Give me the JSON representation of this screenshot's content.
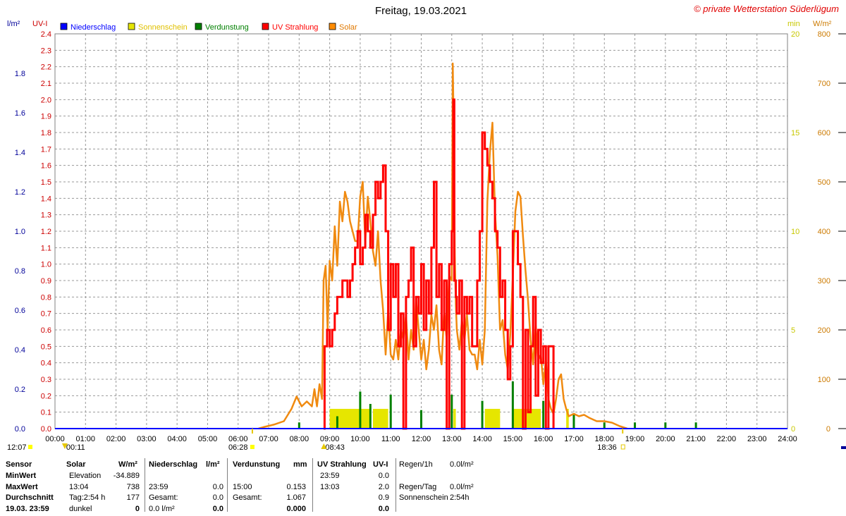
{
  "title": "Freitag, 19.03.2021",
  "copyright": "© private Wetterstation Süderlügum",
  "axes": {
    "left_outer_unit": "l/m²",
    "left_inner_unit": "UV-I",
    "right_inner_unit": "min",
    "right_outer_unit": "W/m²",
    "left_outer_ticks": [
      "0.0",
      "0.2",
      "0.4",
      "0.6",
      "0.8",
      "1.0",
      "1.2",
      "1.4",
      "1.6",
      "1.8"
    ],
    "left_inner_ticks": [
      "0.0",
      "0.1",
      "0.2",
      "0.3",
      "0.4",
      "0.5",
      "0.6",
      "0.7",
      "0.8",
      "0.9",
      "1.0",
      "1.1",
      "1.2",
      "1.3",
      "1.4",
      "1.5",
      "1.6",
      "1.7",
      "1.8",
      "1.9",
      "2.0",
      "2.1",
      "2.2",
      "2.3",
      "2.4"
    ],
    "right_inner_ticks": [
      "0",
      "5",
      "10",
      "15",
      "20"
    ],
    "right_outer_ticks": [
      "0",
      "100",
      "200",
      "300",
      "400",
      "500",
      "600",
      "700",
      "800"
    ],
    "x_ticks": [
      "00:00",
      "01:00",
      "02:00",
      "03:00",
      "04:00",
      "05:00",
      "06:00",
      "07:00",
      "08:00",
      "09:00",
      "10:00",
      "11:00",
      "12:00",
      "13:00",
      "14:00",
      "15:00",
      "16:00",
      "17:00",
      "18:00",
      "19:00",
      "20:00",
      "21:00",
      "22:00",
      "23:00",
      "24:00"
    ]
  },
  "markers": {
    "moonrise_left": "12:07",
    "moonset": "00:11",
    "sunrise": "06:28",
    "sunshine_start": "08:43",
    "sunset": "18:36"
  },
  "legend": [
    {
      "label": "Niederschlag",
      "color": "#0000ff"
    },
    {
      "label": "Sonnenschein",
      "color": "#e6e600"
    },
    {
      "label": "Verdunstung",
      "color": "#008000"
    },
    {
      "label": "UV Strahlung",
      "color": "#ff0000"
    },
    {
      "label": "Solar",
      "color": "#ff8c00"
    }
  ],
  "colors": {
    "solar": "#f08a10",
    "uv": "#ff0000",
    "sunshine": "#e6e600",
    "evaporation": "#008000",
    "rain": "#0000ff",
    "uv_axis": "#cc0000",
    "rain_axis": "#000099",
    "sun_axis": "#c8c800"
  },
  "chart_data": {
    "type": "line",
    "x_unit": "time of day",
    "xlim": [
      "00:00",
      "24:00"
    ],
    "series": [
      {
        "name": "Solar",
        "axis": "W/m²",
        "ylim": [
          0,
          800
        ],
        "points": [
          [
            "06:40",
            0
          ],
          [
            "06:50",
            3
          ],
          [
            "07:10",
            8
          ],
          [
            "07:30",
            15
          ],
          [
            "07:45",
            40
          ],
          [
            "07:55",
            65
          ],
          [
            "08:05",
            45
          ],
          [
            "08:15",
            55
          ],
          [
            "08:25",
            45
          ],
          [
            "08:30",
            80
          ],
          [
            "08:35",
            45
          ],
          [
            "08:40",
            90
          ],
          [
            "08:45",
            60
          ],
          [
            "08:48",
            300
          ],
          [
            "08:52",
            330
          ],
          [
            "08:56",
            200
          ],
          [
            "09:00",
            340
          ],
          [
            "09:05",
            300
          ],
          [
            "09:10",
            410
          ],
          [
            "09:15",
            330
          ],
          [
            "09:20",
            460
          ],
          [
            "09:25",
            420
          ],
          [
            "09:30",
            480
          ],
          [
            "09:35",
            460
          ],
          [
            "09:40",
            420
          ],
          [
            "09:45",
            400
          ],
          [
            "09:50",
            380
          ],
          [
            "09:55",
            380
          ],
          [
            "10:00",
            470
          ],
          [
            "10:05",
            500
          ],
          [
            "10:10",
            380
          ],
          [
            "10:15",
            470
          ],
          [
            "10:20",
            420
          ],
          [
            "10:25",
            360
          ],
          [
            "10:30",
            330
          ],
          [
            "10:35",
            400
          ],
          [
            "10:40",
            300
          ],
          [
            "10:45",
            240
          ],
          [
            "10:50",
            150
          ],
          [
            "10:55",
            240
          ],
          [
            "11:00",
            150
          ],
          [
            "11:05",
            140
          ],
          [
            "11:10",
            180
          ],
          [
            "11:15",
            140
          ],
          [
            "11:20",
            200
          ],
          [
            "11:25",
            180
          ],
          [
            "11:30",
            230
          ],
          [
            "11:35",
            140
          ],
          [
            "11:40",
            200
          ],
          [
            "11:45",
            160
          ],
          [
            "11:50",
            260
          ],
          [
            "11:55",
            200
          ],
          [
            "12:00",
            140
          ],
          [
            "12:05",
            180
          ],
          [
            "12:10",
            120
          ],
          [
            "12:15",
            160
          ],
          [
            "12:20",
            230
          ],
          [
            "12:25",
            200
          ],
          [
            "12:30",
            250
          ],
          [
            "12:35",
            160
          ],
          [
            "12:40",
            130
          ],
          [
            "12:45",
            240
          ],
          [
            "12:50",
            180
          ],
          [
            "12:55",
            310
          ],
          [
            "13:00",
            300
          ],
          [
            "13:02",
            740
          ],
          [
            "13:04",
            600
          ],
          [
            "13:06",
            350
          ],
          [
            "13:08",
            250
          ],
          [
            "13:10",
            200
          ],
          [
            "13:15",
            160
          ],
          [
            "13:20",
            220
          ],
          [
            "13:25",
            180
          ],
          [
            "13:30",
            230
          ],
          [
            "13:35",
            160
          ],
          [
            "13:40",
            150
          ],
          [
            "13:45",
            150
          ],
          [
            "13:50",
            120
          ],
          [
            "13:55",
            180
          ],
          [
            "14:00",
            130
          ],
          [
            "14:05",
            200
          ],
          [
            "14:10",
            460
          ],
          [
            "14:15",
            560
          ],
          [
            "14:20",
            620
          ],
          [
            "14:25",
            440
          ],
          [
            "14:30",
            350
          ],
          [
            "14:35",
            200
          ],
          [
            "14:40",
            220
          ],
          [
            "14:45",
            150
          ],
          [
            "14:50",
            120
          ],
          [
            "14:55",
            190
          ],
          [
            "15:00",
            310
          ],
          [
            "15:05",
            440
          ],
          [
            "15:10",
            480
          ],
          [
            "15:15",
            470
          ],
          [
            "15:20",
            390
          ],
          [
            "15:25",
            320
          ],
          [
            "15:30",
            260
          ],
          [
            "15:35",
            180
          ],
          [
            "15:40",
            130
          ],
          [
            "15:45",
            210
          ],
          [
            "15:50",
            140
          ],
          [
            "15:55",
            150
          ],
          [
            "16:00",
            90
          ],
          [
            "16:05",
            140
          ],
          [
            "16:10",
            60
          ],
          [
            "16:15",
            40
          ],
          [
            "16:20",
            30
          ],
          [
            "16:25",
            60
          ],
          [
            "16:30",
            100
          ],
          [
            "16:35",
            110
          ],
          [
            "16:40",
            60
          ],
          [
            "16:45",
            40
          ],
          [
            "16:50",
            25
          ],
          [
            "17:00",
            30
          ],
          [
            "17:10",
            25
          ],
          [
            "17:20",
            28
          ],
          [
            "17:30",
            22
          ],
          [
            "17:45",
            15
          ],
          [
            "18:00",
            15
          ],
          [
            "18:15",
            12
          ],
          [
            "18:30",
            5
          ],
          [
            "18:45",
            0
          ]
        ]
      },
      {
        "name": "UV Strahlung",
        "axis": "UV-I",
        "ylim": [
          0,
          2.4
        ],
        "points": [
          [
            "08:48",
            0
          ],
          [
            "08:50",
            0.5
          ],
          [
            "08:55",
            0.6
          ],
          [
            "09:00",
            0.5
          ],
          [
            "09:05",
            0.6
          ],
          [
            "09:10",
            0.7
          ],
          [
            "09:15",
            0.8
          ],
          [
            "09:20",
            0.8
          ],
          [
            "09:25",
            0.9
          ],
          [
            "09:30",
            0.9
          ],
          [
            "09:35",
            0.8
          ],
          [
            "09:40",
            0.9
          ],
          [
            "09:45",
            1.0
          ],
          [
            "09:50",
            1.1
          ],
          [
            "09:55",
            1.2
          ],
          [
            "10:00",
            1.0
          ],
          [
            "10:05",
            1.1
          ],
          [
            "10:10",
            1.3
          ],
          [
            "10:15",
            1.2
          ],
          [
            "10:20",
            1.1
          ],
          [
            "10:25",
            1.3
          ],
          [
            "10:30",
            1.5
          ],
          [
            "10:35",
            1.4
          ],
          [
            "10:40",
            1.5
          ],
          [
            "10:45",
            1.6
          ],
          [
            "10:50",
            1.2
          ],
          [
            "10:55",
            0.6
          ],
          [
            "11:00",
            1.0
          ],
          [
            "11:05",
            0.8
          ],
          [
            "11:10",
            1.0
          ],
          [
            "11:15",
            0.5
          ],
          [
            "11:20",
            0.7
          ],
          [
            "11:25",
            0.0
          ],
          [
            "11:30",
            0.8
          ],
          [
            "11:35",
            0.9
          ],
          [
            "11:40",
            1.1
          ],
          [
            "11:45",
            0.5
          ],
          [
            "11:50",
            0.8
          ],
          [
            "11:55",
            0.7
          ],
          [
            "12:00",
            1.0
          ],
          [
            "12:05",
            0.6
          ],
          [
            "12:10",
            0.9
          ],
          [
            "12:15",
            0.7
          ],
          [
            "12:20",
            1.1
          ],
          [
            "12:25",
            1.5
          ],
          [
            "12:30",
            0.8
          ],
          [
            "12:35",
            1.0
          ],
          [
            "12:40",
            0.6
          ],
          [
            "12:45",
            0.9
          ],
          [
            "12:50",
            0.0
          ],
          [
            "12:55",
            1.0
          ],
          [
            "13:00",
            1.2
          ],
          [
            "13:03",
            2.0
          ],
          [
            "13:05",
            0.9
          ],
          [
            "13:08",
            0.8
          ],
          [
            "13:10",
            0.7
          ],
          [
            "13:15",
            0.9
          ],
          [
            "13:20",
            0.0
          ],
          [
            "13:25",
            0.8
          ],
          [
            "13:30",
            0.7
          ],
          [
            "13:35",
            0.8
          ],
          [
            "13:40",
            0.5
          ],
          [
            "13:45",
            0.5
          ],
          [
            "13:50",
            0.9
          ],
          [
            "13:55",
            1.2
          ],
          [
            "14:00",
            1.8
          ],
          [
            "14:05",
            1.7
          ],
          [
            "14:10",
            1.6
          ],
          [
            "14:15",
            1.5
          ],
          [
            "14:20",
            1.4
          ],
          [
            "14:25",
            1.2
          ],
          [
            "14:30",
            1.1
          ],
          [
            "14:35",
            0.8
          ],
          [
            "14:40",
            0.9
          ],
          [
            "14:45",
            0.6
          ],
          [
            "14:50",
            0.3
          ],
          [
            "14:55",
            0.5
          ],
          [
            "15:00",
            1.2
          ],
          [
            "15:05",
            1.2
          ],
          [
            "15:10",
            1.0
          ],
          [
            "15:15",
            0.8
          ],
          [
            "15:20",
            0.0
          ],
          [
            "15:25",
            0.6
          ],
          [
            "15:30",
            0.1
          ],
          [
            "15:35",
            0.5
          ],
          [
            "15:40",
            0.8
          ],
          [
            "15:45",
            0.2
          ],
          [
            "15:50",
            0.6
          ],
          [
            "15:55",
            0.4
          ],
          [
            "16:00",
            0.5
          ],
          [
            "16:05",
            0.0
          ],
          [
            "16:10",
            0.5
          ],
          [
            "16:15",
            0.5
          ],
          [
            "16:20",
            0.0
          ]
        ]
      },
      {
        "name": "Sonnenschein",
        "axis": "min",
        "ylim": [
          0,
          20
        ],
        "intervals": [
          [
            "09:00",
            "10:20",
            1.0
          ],
          [
            "10:25",
            "10:55",
            1.0
          ],
          [
            "13:03",
            "13:08",
            1.0
          ],
          [
            "14:05",
            "14:35",
            1.0
          ],
          [
            "15:00",
            "15:55",
            1.0
          ],
          [
            "16:45",
            "16:50",
            1.0
          ]
        ]
      },
      {
        "name": "Verdunstung",
        "axis": "mm",
        "bars": [
          [
            "08:00",
            0.02
          ],
          [
            "09:15",
            0.04
          ],
          [
            "10:00",
            0.12
          ],
          [
            "10:20",
            0.08
          ],
          [
            "11:00",
            0.11
          ],
          [
            "12:00",
            0.06
          ],
          [
            "13:00",
            0.11
          ],
          [
            "14:00",
            0.09
          ],
          [
            "15:00",
            0.153
          ],
          [
            "16:00",
            0.09
          ],
          [
            "17:00",
            0.05
          ],
          [
            "18:00",
            0.02
          ],
          [
            "19:00",
            0.02
          ],
          [
            "20:00",
            0.02
          ],
          [
            "21:00",
            0.02
          ]
        ]
      },
      {
        "name": "Niederschlag",
        "axis": "l/m²",
        "values_total": 0.0
      }
    ]
  },
  "stats": {
    "headers": {
      "sensor": "Sensor",
      "solar": "Solar",
      "solar_unit": "W/m²",
      "rain": "Niederschlag",
      "rain_unit": "l/m²",
      "evap": "Verdunstung",
      "evap_unit": "mm",
      "uv": "UV Strahlung",
      "uv_unit": "UV-I"
    },
    "rows": [
      {
        "label": "MinWert",
        "solar_a": "Elevation",
        "solar_b": "-34.889",
        "rain_a": "",
        "rain_b": "",
        "evap_a": "",
        "evap_b": "",
        "uv_a": "23:59",
        "uv_b": "0.0",
        "extra_a": "Regen/1h",
        "extra_b": "0.0l/m²"
      },
      {
        "label": "MaxWert",
        "solar_a": "13:04",
        "solar_b": "738",
        "rain_a": "23:59",
        "rain_b": "0.0",
        "evap_a": "15:00",
        "evap_b": "0.153",
        "uv_a": "13:03",
        "uv_b": "2.0",
        "extra_a": "Regen/Tag",
        "extra_b": "0.0l/m²"
      },
      {
        "label": "Durchschnitt",
        "solar_a": "Tag:2:54 h",
        "solar_b": "177",
        "rain_a": "Gesamt:",
        "rain_b": "0.0",
        "evap_a": "Gesamt:",
        "evap_b": "1.067",
        "uv_a": "",
        "uv_b": "0.9",
        "extra_a": "Sonnenschein",
        "extra_b": "2:54h"
      },
      {
        "label": "19.03. 23:59",
        "solar_a": "dunkel",
        "solar_b": "0",
        "rain_a": "0.0 l/m²",
        "rain_b": "0.0",
        "evap_a": "",
        "evap_b": "0.000",
        "uv_a": "",
        "uv_b": "0.0",
        "extra_a": "",
        "extra_b": ""
      }
    ]
  }
}
